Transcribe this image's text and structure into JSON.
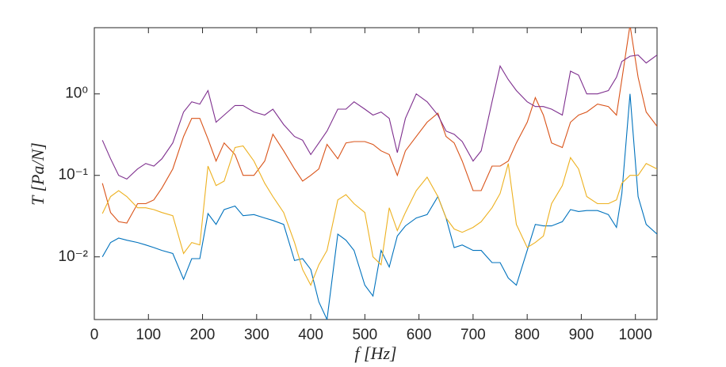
{
  "chart_data": {
    "type": "line",
    "xlabel": "f [Hz]",
    "ylabel": "T [Pa/N]",
    "x": [
      15,
      30,
      45,
      60,
      80,
      95,
      110,
      125,
      145,
      165,
      180,
      195,
      210,
      225,
      240,
      260,
      275,
      295,
      315,
      330,
      350,
      370,
      385,
      400,
      415,
      430,
      450,
      465,
      480,
      500,
      515,
      530,
      545,
      560,
      575,
      595,
      615,
      635,
      650,
      665,
      680,
      700,
      715,
      735,
      750,
      765,
      780,
      800,
      815,
      830,
      845,
      865,
      880,
      895,
      910,
      930,
      950,
      965,
      975,
      990,
      1005,
      1020,
      1040
    ],
    "series": [
      {
        "color": "#0072BD",
        "values": [
          0.01,
          0.015,
          0.017,
          0.016,
          0.015,
          0.014,
          0.013,
          0.012,
          0.011,
          0.0053,
          0.0095,
          0.0095,
          0.034,
          0.025,
          0.038,
          0.042,
          0.032,
          0.033,
          0.03,
          0.028,
          0.025,
          0.009,
          0.0095,
          0.007,
          0.0028,
          0.0017,
          0.019,
          0.016,
          0.012,
          0.0045,
          0.0033,
          0.012,
          0.0075,
          0.018,
          0.024,
          0.03,
          0.033,
          0.055,
          0.03,
          0.013,
          0.014,
          0.012,
          0.012,
          0.0085,
          0.0085,
          0.0055,
          0.0045,
          0.012,
          0.025,
          0.024,
          0.024,
          0.027,
          0.038,
          0.036,
          0.037,
          0.037,
          0.033,
          0.023,
          0.06,
          1.0,
          0.055,
          0.025,
          0.019
        ]
      },
      {
        "color": "#D95319",
        "values": [
          0.08,
          0.035,
          0.027,
          0.026,
          0.045,
          0.045,
          0.05,
          0.07,
          0.12,
          0.3,
          0.5,
          0.5,
          0.28,
          0.15,
          0.25,
          0.18,
          0.1,
          0.1,
          0.15,
          0.32,
          0.2,
          0.12,
          0.085,
          0.1,
          0.12,
          0.24,
          0.16,
          0.25,
          0.26,
          0.26,
          0.24,
          0.2,
          0.18,
          0.1,
          0.2,
          0.3,
          0.45,
          0.58,
          0.3,
          0.25,
          0.15,
          0.065,
          0.065,
          0.13,
          0.13,
          0.15,
          0.25,
          0.45,
          0.9,
          0.55,
          0.25,
          0.22,
          0.45,
          0.55,
          0.6,
          0.75,
          0.7,
          0.55,
          1.5,
          7.0,
          1.6,
          0.6,
          0.4
        ]
      },
      {
        "color": "#EDB120",
        "values": [
          0.034,
          0.055,
          0.065,
          0.055,
          0.04,
          0.04,
          0.038,
          0.035,
          0.032,
          0.011,
          0.015,
          0.014,
          0.13,
          0.075,
          0.085,
          0.22,
          0.23,
          0.15,
          0.08,
          0.055,
          0.035,
          0.015,
          0.007,
          0.0045,
          0.008,
          0.012,
          0.05,
          0.058,
          0.045,
          0.035,
          0.01,
          0.008,
          0.04,
          0.021,
          0.035,
          0.065,
          0.095,
          0.055,
          0.03,
          0.022,
          0.02,
          0.023,
          0.027,
          0.04,
          0.06,
          0.14,
          0.025,
          0.013,
          0.015,
          0.018,
          0.045,
          0.075,
          0.165,
          0.12,
          0.055,
          0.045,
          0.045,
          0.05,
          0.08,
          0.1,
          0.1,
          0.14,
          0.12
        ]
      },
      {
        "color": "#7E2F8E",
        "values": [
          0.27,
          0.16,
          0.1,
          0.09,
          0.12,
          0.14,
          0.13,
          0.16,
          0.25,
          0.6,
          0.8,
          0.75,
          1.1,
          0.45,
          0.55,
          0.72,
          0.72,
          0.6,
          0.55,
          0.65,
          0.42,
          0.3,
          0.27,
          0.18,
          0.25,
          0.35,
          0.65,
          0.65,
          0.8,
          0.65,
          0.55,
          0.6,
          0.5,
          0.19,
          0.5,
          1.0,
          0.8,
          0.55,
          0.35,
          0.32,
          0.26,
          0.15,
          0.2,
          0.8,
          2.2,
          1.5,
          1.1,
          0.8,
          0.7,
          0.7,
          0.65,
          0.55,
          1.9,
          1.7,
          1.0,
          1.0,
          1.1,
          1.6,
          2.5,
          2.9,
          3.0,
          2.4,
          3.0
        ]
      }
    ],
    "xlim": [
      0,
      1040
    ],
    "xticks": [
      0,
      100,
      200,
      300,
      400,
      500,
      600,
      700,
      800,
      900,
      1000
    ],
    "ylim": [
      0.0017,
      6.5
    ],
    "ylog": true,
    "yticks": [
      {
        "value": 0.01,
        "label": "10⁻²"
      },
      {
        "value": 0.1,
        "label": "10⁻¹"
      },
      {
        "value": 1,
        "label": "10⁰"
      }
    ]
  }
}
